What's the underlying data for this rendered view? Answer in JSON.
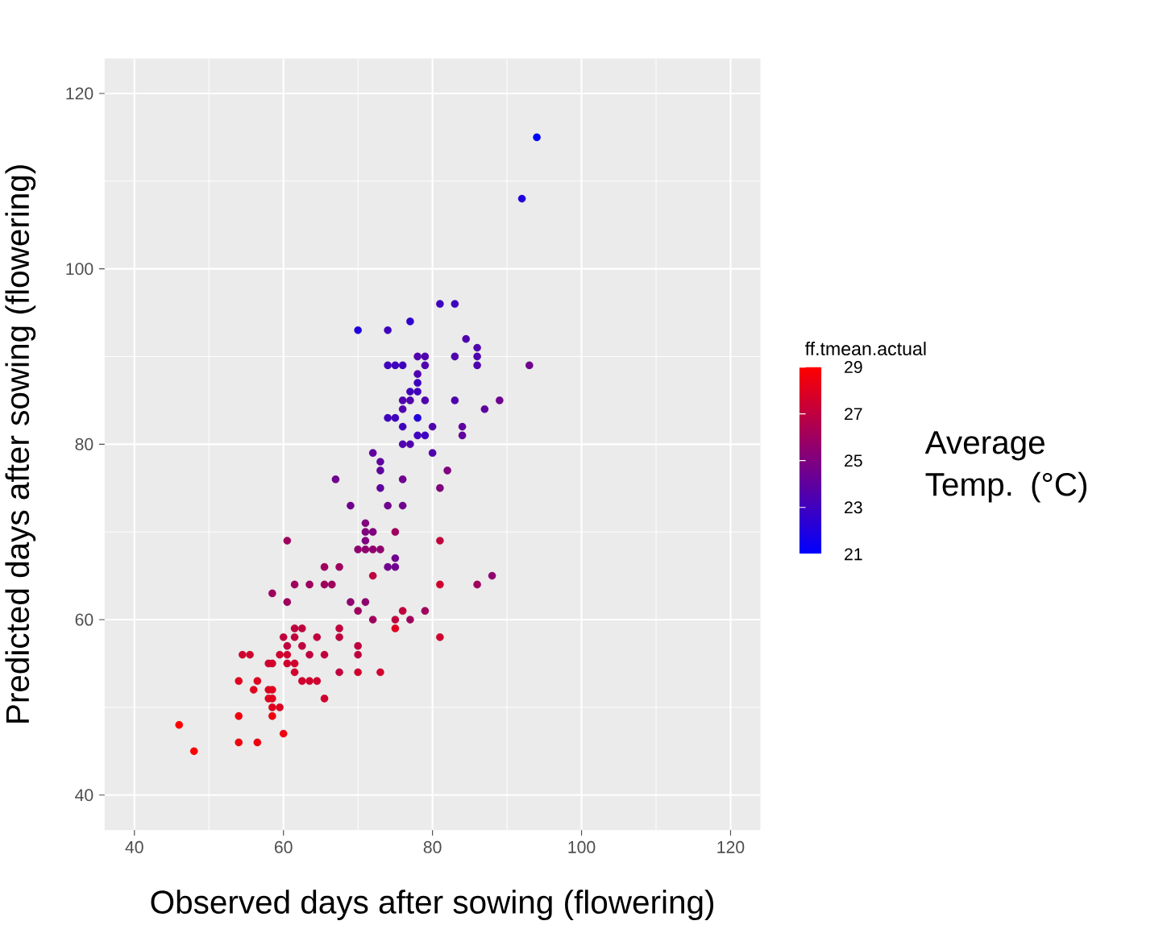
{
  "chart_data": {
    "type": "scatter",
    "xlabel": "Observed days after sowing (flowering)",
    "ylabel": "Predicted days after sowing (flowering)",
    "clabel": "ff.tmean.actual",
    "annotations": [
      "Average Temp. (°C)"
    ],
    "xlim": [
      36,
      124
    ],
    "ylim": [
      36,
      124
    ],
    "xticks": [
      40,
      60,
      80,
      100,
      120
    ],
    "yticks": [
      40,
      60,
      80,
      100,
      120
    ],
    "clim": [
      21,
      29
    ],
    "cticks": [
      21,
      23,
      25,
      27,
      29
    ],
    "grid": true,
    "marker": "circle",
    "series": [
      {
        "x": [
          46,
          48,
          54,
          54,
          56.5,
          60,
          54,
          56.5,
          56,
          54.5,
          55.5,
          58,
          58.5,
          58,
          58.5,
          58,
          58.5,
          58.5,
          59.5,
          58.5,
          60,
          60.5,
          61.5,
          61.5,
          62.5,
          64.5,
          62.5,
          59.5,
          60.5,
          63.5,
          65.5,
          60.5,
          61.5,
          61.5,
          62.5,
          63.5,
          64.5,
          65.5,
          67.5,
          67.5,
          67.5,
          58.5,
          60.5,
          61.5,
          63.5,
          65.5,
          66.5,
          65.5,
          67.5,
          60.5,
          67,
          74,
          75,
          78,
          76,
          80,
          84,
          84,
          78,
          79,
          76,
          77,
          72,
          80,
          73,
          73,
          82,
          73,
          76,
          81,
          69,
          74,
          76,
          71,
          71,
          72,
          75,
          71,
          81,
          70,
          71,
          72,
          73,
          75,
          74,
          75,
          72,
          81,
          86,
          88,
          69,
          71,
          70,
          72,
          75,
          76,
          77,
          79,
          75,
          81,
          70,
          70,
          70,
          73,
          81,
          83,
          70,
          74,
          77,
          84.5,
          86,
          86,
          86,
          93,
          74,
          75,
          76,
          78,
          79,
          79,
          83,
          78,
          78,
          77,
          78,
          76,
          77,
          79,
          83,
          89,
          76,
          87,
          92,
          94
        ],
        "values": [
          48,
          45,
          49,
          46,
          46,
          47,
          53,
          53,
          52,
          56,
          56,
          55,
          55,
          52,
          52,
          51,
          51,
          50,
          50,
          49,
          58,
          57,
          58,
          59,
          59,
          58,
          57,
          56,
          56,
          56,
          56,
          55,
          55,
          54,
          53,
          53,
          53,
          51,
          54,
          58,
          59,
          63,
          62,
          64,
          64,
          64,
          64,
          66,
          66,
          69,
          76,
          83,
          83,
          83,
          82,
          82,
          82,
          81,
          81,
          81,
          80,
          80,
          79,
          79,
          78,
          77,
          77,
          75,
          76,
          75,
          73,
          73,
          73,
          71,
          70,
          70,
          70,
          69,
          69,
          68,
          68,
          68,
          68,
          67,
          66,
          66,
          65,
          64,
          64,
          65,
          62,
          62,
          61,
          60,
          60,
          61,
          60,
          61,
          59,
          58,
          57,
          56,
          54,
          54,
          96,
          96,
          93,
          93,
          94,
          92,
          91,
          90,
          89,
          89,
          89,
          89,
          89,
          90,
          90,
          89,
          90,
          88,
          87,
          86,
          86,
          85,
          85,
          85,
          85,
          85,
          84,
          84,
          108,
          115
        ],
        "cvalues": [
          29,
          29,
          28.5,
          28.5,
          28.5,
          28.5,
          28,
          28,
          28,
          27.5,
          27.5,
          27.5,
          27.5,
          28,
          28,
          28,
          28,
          28,
          28,
          28.5,
          27,
          27,
          27,
          27,
          27,
          27,
          27,
          27.5,
          27.5,
          27,
          27,
          27.5,
          27.5,
          27.5,
          27.5,
          27.5,
          27.5,
          27.5,
          27,
          27,
          27,
          26,
          26,
          26,
          26,
          26,
          26,
          26,
          26,
          26,
          24.5,
          23,
          23,
          22,
          23,
          23.5,
          24,
          24,
          23,
          23,
          23.5,
          23.5,
          24,
          23.5,
          24,
          24,
          25,
          24,
          24.5,
          25,
          24.5,
          24.5,
          24.5,
          25,
          25,
          25,
          26,
          25,
          27,
          25.5,
          25.5,
          25.5,
          25.5,
          24.5,
          24.5,
          24.5,
          27,
          27.5,
          26,
          25.5,
          25.5,
          25.5,
          26,
          26,
          27,
          27,
          26,
          26,
          28,
          27.5,
          27,
          27,
          27.5,
          27.5,
          23,
          23,
          22,
          23,
          22.5,
          23.5,
          23.5,
          23.5,
          23.5,
          24.5,
          23,
          23,
          23,
          23.5,
          23.5,
          23.5,
          23.5,
          23.5,
          23,
          23,
          23,
          23.5,
          23.5,
          23.5,
          23.5,
          24.5,
          23.5,
          24,
          22,
          21
        ]
      }
    ]
  }
}
